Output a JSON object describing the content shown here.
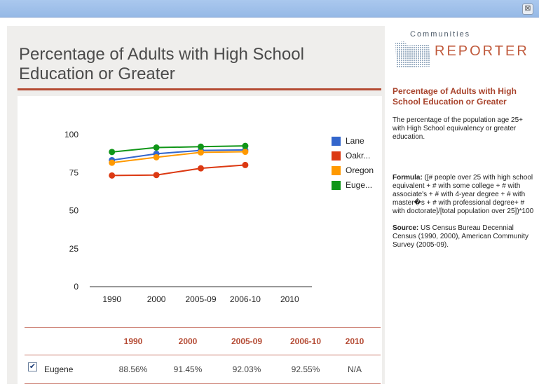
{
  "window": {
    "close_label": "⊠"
  },
  "page": {
    "title": "Percentage of Adults with High School Education or Greater"
  },
  "logo": {
    "top": "Communities",
    "bottom": "REPORTER"
  },
  "sidebar": {
    "title": "Percentage of Adults with High School Education or Greater",
    "description": "The percentage of the population age 25+ with High School equivalency or greater education.",
    "formula_label": "Formula:",
    "formula_text": "([# people over 25 with high school equivalent + # with some college + # with associate's + # with 4-year degree + # with master�s + # with professional degree+ # with doctorate]/[total population over 25])*100",
    "source_label": "Source:",
    "source_text": "US Census Bureau Decennial Census (1990, 2000), American Community Survey (2005-09)."
  },
  "chart_data": {
    "type": "line",
    "title": "Percentage of Adults with High School Education or Greater",
    "xlabel": "",
    "ylabel": "",
    "categories": [
      "1990",
      "2000",
      "2005-09",
      "2006-10",
      "2010"
    ],
    "yticks": [
      0,
      25,
      50,
      75,
      100
    ],
    "ylim": [
      0,
      100
    ],
    "grid": false,
    "legend_position": "right",
    "series": [
      {
        "name": "Lane",
        "color": "#3366cc",
        "values": [
          83.2,
          87.4,
          89.6,
          89.9,
          null
        ]
      },
      {
        "name": "Oakr...",
        "color": "#dc3912",
        "values": [
          73.1,
          73.4,
          77.8,
          80.0,
          null
        ]
      },
      {
        "name": "Oregon",
        "color": "#ff9900",
        "values": [
          81.5,
          85.1,
          88.3,
          88.7,
          null
        ]
      },
      {
        "name": "Euge...",
        "color": "#109618",
        "values": [
          88.56,
          91.45,
          92.03,
          92.55,
          null
        ]
      }
    ]
  },
  "table": {
    "headers": [
      "1990",
      "2000",
      "2005-09",
      "2006-10",
      "2010"
    ],
    "rows": [
      {
        "checked": "✔",
        "label": "Eugene",
        "values": [
          "88.56%",
          "91.45%",
          "92.03%",
          "92.55%",
          "N/A"
        ]
      }
    ]
  }
}
